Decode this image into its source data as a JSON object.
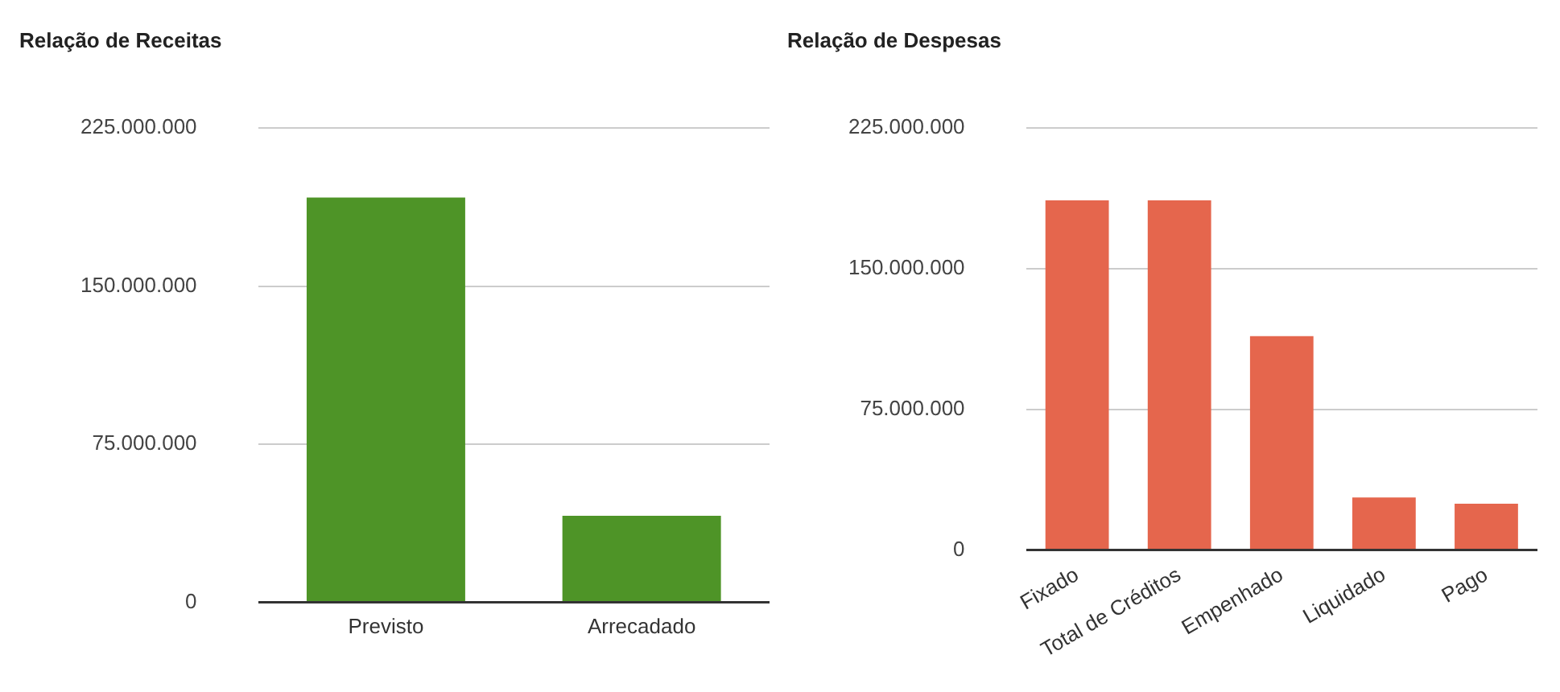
{
  "chart_data": [
    {
      "type": "bar",
      "title": "Relação de Receitas",
      "categories": [
        "Previsto",
        "Arrecadado"
      ],
      "values": [
        192000000,
        41000000
      ],
      "color": "#4e9427",
      "ylim": [
        0,
        225000000
      ],
      "yticks": [
        {
          "value": 0,
          "label": "0"
        },
        {
          "value": 75000000,
          "label": "75.000.000"
        },
        {
          "value": 150000000,
          "label": "150.000.000"
        },
        {
          "value": 225000000,
          "label": "225.000.000"
        }
      ],
      "grid": "y",
      "legend": false
    },
    {
      "type": "bar",
      "title": "Relação de Despesas",
      "categories": [
        "Fixado",
        "Total de Créditos",
        "Empenhado",
        "Liquidado",
        "Pago"
      ],
      "values": [
        186500000,
        186500000,
        114000000,
        28000000,
        24700000
      ],
      "color": "#e5664d",
      "ylim": [
        0,
        225000000
      ],
      "yticks": [
        {
          "value": 0,
          "label": "0"
        },
        {
          "value": 75000000,
          "label": "75.000.000"
        },
        {
          "value": 150000000,
          "label": "150.000.000"
        },
        {
          "value": 225000000,
          "label": "225.000.000"
        }
      ],
      "grid": "y",
      "legend": false
    }
  ]
}
